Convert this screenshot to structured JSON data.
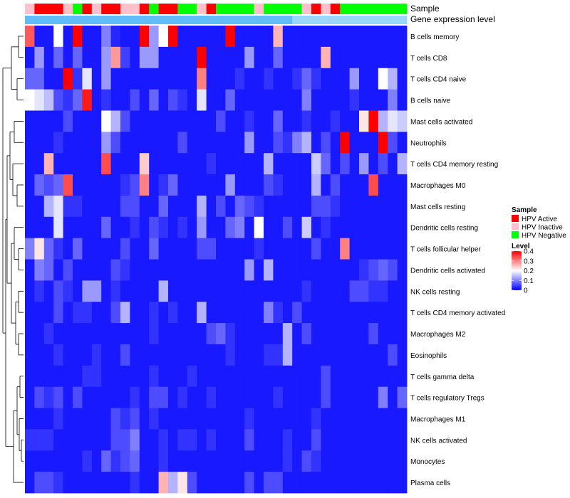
{
  "chart_data": {
    "type": "heatmap",
    "annotation_labels": {
      "sample": "Sample",
      "gene_expression": "Gene expression level"
    },
    "rows": [
      "B cells memory",
      "T cells CD8",
      "T cells CD4 naive",
      "B cells naive",
      "Mast cells activated",
      "Neutrophils",
      "T cells CD4 memory resting",
      "Macrophages M0",
      "Mast cells resting",
      "Dendritic cells resting",
      "T cells follicular helper",
      "Dendritic cells activated",
      "NK cells resting",
      "T cells CD4 memory activated",
      "Macrophages M2",
      "Eosinophils",
      "T cells gamma delta",
      "T cells regulatory  Tregs",
      "Macrophages M1",
      "NK cells activated",
      "Monocytes",
      "Plasma cells"
    ],
    "samples": [
      "HPV Inactive",
      "HPV Active",
      "HPV Active",
      "HPV Active",
      "HPV Inactive",
      "HPV Negative",
      "HPV Active",
      "HPV Inactive",
      "HPV Active",
      "HPV Active",
      "HPV Inactive",
      "HPV Inactive",
      "HPV Active",
      "HPV Negative",
      "HPV Active",
      "HPV Active",
      "HPV Negative",
      "HPV Negative",
      "HPV Inactive",
      "HPV Active",
      "HPV Negative",
      "HPV Negative",
      "HPV Negative",
      "HPV Negative",
      "HPV Inactive",
      "HPV Negative",
      "HPV Negative",
      "HPV Negative",
      "HPV Negative",
      "HPV Inactive",
      "HPV Active",
      "HPV Inactive",
      "HPV Active",
      "HPV Negative",
      "HPV Negative",
      "HPV Negative",
      "HPV Negative",
      "HPV Negative",
      "HPV Negative",
      "HPV Negative"
    ],
    "gene_expression": [
      0.88,
      0.88,
      0.88,
      0.88,
      0.88,
      0.88,
      0.88,
      0.88,
      0.88,
      0.88,
      0.88,
      0.88,
      0.88,
      0.88,
      0.88,
      0.88,
      0.88,
      0.88,
      0.88,
      0.88,
      0.88,
      0.88,
      0.88,
      0.88,
      0.88,
      0.88,
      0.88,
      0.88,
      0.55,
      0.55,
      0.55,
      0.55,
      0.55,
      0.55,
      0.55,
      0.55,
      0.55,
      0.55,
      0.55,
      0.55
    ],
    "values": [
      [
        0.33,
        0.02,
        0.02,
        0.2,
        0.02,
        0.4,
        0.02,
        0.02,
        0.1,
        0.03,
        0.02,
        0.02,
        0.4,
        0.12,
        0.2,
        0.4,
        0.02,
        0.02,
        0.02,
        0.02,
        0.02,
        0.4,
        0.02,
        0.02,
        0.02,
        0.02,
        0.26,
        0.02,
        0.02,
        0.02,
        0.02,
        0.02,
        0.02,
        0.02,
        0.02,
        0.02,
        0.02,
        0.02,
        0.02,
        0.02
      ],
      [
        0.02,
        0.12,
        0.02,
        0.08,
        0.02,
        0.08,
        0.02,
        0.02,
        0.12,
        0.28,
        0.05,
        0.02,
        0.12,
        0.12,
        0.02,
        0.02,
        0.02,
        0.02,
        0.4,
        0.02,
        0.02,
        0.02,
        0.02,
        0.12,
        0.02,
        0.02,
        0.08,
        0.02,
        0.02,
        0.02,
        0.02,
        0.26,
        0.02,
        0.02,
        0.02,
        0.02,
        0.02,
        0.02,
        0.02,
        0.02
      ],
      [
        0.08,
        0.08,
        0.02,
        0.02,
        0.4,
        0.04,
        0.18,
        0.02,
        0.12,
        0.02,
        0.02,
        0.02,
        0.02,
        0.02,
        0.02,
        0.02,
        0.02,
        0.02,
        0.3,
        0.02,
        0.02,
        0.02,
        0.04,
        0.02,
        0.02,
        0.04,
        0.02,
        0.02,
        0.04,
        0.08,
        0.04,
        0.02,
        0.02,
        0.02,
        0.12,
        0.02,
        0.02,
        0.2,
        0.14,
        0.02
      ],
      [
        0.2,
        0.18,
        0.15,
        0.06,
        0.04,
        0.08,
        0.38,
        0.02,
        0.04,
        0.02,
        0.02,
        0.06,
        0.02,
        0.08,
        0.02,
        0.06,
        0.04,
        0.02,
        0.18,
        0.02,
        0.02,
        0.08,
        0.02,
        0.02,
        0.02,
        0.02,
        0.02,
        0.02,
        0.02,
        0.1,
        0.02,
        0.02,
        0.02,
        0.02,
        0.04,
        0.02,
        0.02,
        0.02,
        0.1,
        0.02
      ],
      [
        0.02,
        0.02,
        0.02,
        0.02,
        0.06,
        0.02,
        0.02,
        0.02,
        0.2,
        0.14,
        0.06,
        0.02,
        0.02,
        0.02,
        0.02,
        0.02,
        0.02,
        0.02,
        0.02,
        0.02,
        0.06,
        0.02,
        0.02,
        0.04,
        0.02,
        0.02,
        0.08,
        0.02,
        0.02,
        0.04,
        0.02,
        0.02,
        0.04,
        0.02,
        0.02,
        0.22,
        0.4,
        0.14,
        0.18,
        0.16
      ],
      [
        0.02,
        0.02,
        0.02,
        0.04,
        0.02,
        0.02,
        0.02,
        0.02,
        0.12,
        0.06,
        0.02,
        0.02,
        0.02,
        0.02,
        0.02,
        0.02,
        0.06,
        0.02,
        0.02,
        0.02,
        0.02,
        0.02,
        0.02,
        0.12,
        0.02,
        0.02,
        0.06,
        0.04,
        0.1,
        0.14,
        0.02,
        0.06,
        0.02,
        0.4,
        0.02,
        0.02,
        0.02,
        0.4,
        0.06,
        0.02
      ],
      [
        0.02,
        0.02,
        0.26,
        0.02,
        0.02,
        0.02,
        0.02,
        0.02,
        0.34,
        0.02,
        0.02,
        0.02,
        0.24,
        0.02,
        0.02,
        0.02,
        0.02,
        0.02,
        0.02,
        0.04,
        0.02,
        0.02,
        0.02,
        0.02,
        0.02,
        0.14,
        0.02,
        0.02,
        0.02,
        0.02,
        0.16,
        0.08,
        0.02,
        0.06,
        0.02,
        0.12,
        0.02,
        0.06,
        0.02,
        0.14
      ],
      [
        0.02,
        0.08,
        0.06,
        0.08,
        0.34,
        0.02,
        0.02,
        0.02,
        0.02,
        0.02,
        0.04,
        0.06,
        0.3,
        0.02,
        0.04,
        0.08,
        0.02,
        0.02,
        0.02,
        0.02,
        0.02,
        0.12,
        0.02,
        0.02,
        0.02,
        0.06,
        0.04,
        0.02,
        0.02,
        0.02,
        0.14,
        0.02,
        0.06,
        0.02,
        0.02,
        0.02,
        0.34,
        0.02,
        0.02,
        0.02
      ],
      [
        0.02,
        0.02,
        0.14,
        0.18,
        0.04,
        0.04,
        0.02,
        0.02,
        0.02,
        0.02,
        0.06,
        0.06,
        0.02,
        0.02,
        0.08,
        0.02,
        0.02,
        0.02,
        0.14,
        0.02,
        0.06,
        0.02,
        0.08,
        0.06,
        0.04,
        0.02,
        0.02,
        0.02,
        0.02,
        0.02,
        0.06,
        0.06,
        0.04,
        0.02,
        0.02,
        0.02,
        0.02,
        0.02,
        0.02,
        0.02
      ],
      [
        0.02,
        0.02,
        0.02,
        0.18,
        0.02,
        0.02,
        0.02,
        0.02,
        0.08,
        0.02,
        0.02,
        0.04,
        0.02,
        0.06,
        0.04,
        0.02,
        0.04,
        0.02,
        0.12,
        0.02,
        0.02,
        0.08,
        0.1,
        0.02,
        0.2,
        0.02,
        0.02,
        0.06,
        0.02,
        0.16,
        0.02,
        0.04,
        0.02,
        0.02,
        0.02,
        0.02,
        0.02,
        0.02,
        0.02,
        0.02
      ],
      [
        0.1,
        0.22,
        0.08,
        0.04,
        0.02,
        0.08,
        0.02,
        0.02,
        0.02,
        0.02,
        0.06,
        0.02,
        0.02,
        0.08,
        0.02,
        0.02,
        0.02,
        0.02,
        0.06,
        0.06,
        0.02,
        0.02,
        0.02,
        0.02,
        0.04,
        0.02,
        0.02,
        0.02,
        0.02,
        0.02,
        0.06,
        0.02,
        0.02,
        0.3,
        0.02,
        0.02,
        0.02,
        0.02,
        0.02,
        0.02
      ],
      [
        0.02,
        0.1,
        0.08,
        0.02,
        0.06,
        0.02,
        0.02,
        0.02,
        0.02,
        0.06,
        0.04,
        0.02,
        0.02,
        0.02,
        0.02,
        0.02,
        0.02,
        0.02,
        0.02,
        0.02,
        0.02,
        0.02,
        0.02,
        0.12,
        0.02,
        0.14,
        0.02,
        0.02,
        0.02,
        0.02,
        0.02,
        0.02,
        0.02,
        0.02,
        0.02,
        0.04,
        0.06,
        0.08,
        0.06,
        0.02
      ],
      [
        0.02,
        0.04,
        0.02,
        0.06,
        0.04,
        0.02,
        0.12,
        0.12,
        0.02,
        0.04,
        0.02,
        0.02,
        0.02,
        0.02,
        0.14,
        0.02,
        0.02,
        0.02,
        0.02,
        0.02,
        0.02,
        0.02,
        0.02,
        0.02,
        0.02,
        0.02,
        0.02,
        0.02,
        0.02,
        0.04,
        0.02,
        0.02,
        0.02,
        0.02,
        0.06,
        0.06,
        0.04,
        0.04,
        0.02,
        0.02
      ],
      [
        0.02,
        0.02,
        0.02,
        0.06,
        0.02,
        0.04,
        0.04,
        0.02,
        0.02,
        0.06,
        0.14,
        0.02,
        0.02,
        0.04,
        0.02,
        0.04,
        0.02,
        0.02,
        0.14,
        0.02,
        0.02,
        0.02,
        0.02,
        0.02,
        0.02,
        0.1,
        0.04,
        0.02,
        0.06,
        0.02,
        0.02,
        0.02,
        0.02,
        0.02,
        0.02,
        0.02,
        0.02,
        0.02,
        0.02,
        0.02
      ],
      [
        0.02,
        0.02,
        0.04,
        0.02,
        0.02,
        0.02,
        0.02,
        0.02,
        0.02,
        0.02,
        0.02,
        0.02,
        0.02,
        0.04,
        0.02,
        0.02,
        0.02,
        0.02,
        0.02,
        0.06,
        0.08,
        0.04,
        0.02,
        0.02,
        0.02,
        0.02,
        0.02,
        0.14,
        0.02,
        0.06,
        0.02,
        0.02,
        0.02,
        0.02,
        0.02,
        0.02,
        0.06,
        0.02,
        0.02,
        0.02
      ],
      [
        0.02,
        0.02,
        0.02,
        0.04,
        0.02,
        0.02,
        0.02,
        0.04,
        0.02,
        0.02,
        0.06,
        0.02,
        0.02,
        0.02,
        0.02,
        0.02,
        0.02,
        0.02,
        0.02,
        0.02,
        0.02,
        0.04,
        0.02,
        0.02,
        0.02,
        0.04,
        0.04,
        0.14,
        0.02,
        0.02,
        0.02,
        0.02,
        0.02,
        0.02,
        0.02,
        0.02,
        0.02,
        0.02,
        0.06,
        0.02
      ],
      [
        0.02,
        0.02,
        0.02,
        0.02,
        0.02,
        0.02,
        0.04,
        0.04,
        0.02,
        0.02,
        0.02,
        0.02,
        0.02,
        0.04,
        0.02,
        0.02,
        0.02,
        0.04,
        0.02,
        0.02,
        0.02,
        0.02,
        0.02,
        0.02,
        0.02,
        0.02,
        0.02,
        0.02,
        0.02,
        0.02,
        0.02,
        0.06,
        0.02,
        0.02,
        0.02,
        0.02,
        0.02,
        0.02,
        0.02,
        0.02
      ],
      [
        0.02,
        0.06,
        0.04,
        0.06,
        0.02,
        0.06,
        0.02,
        0.02,
        0.02,
        0.02,
        0.02,
        0.04,
        0.02,
        0.06,
        0.06,
        0.02,
        0.04,
        0.02,
        0.02,
        0.04,
        0.02,
        0.02,
        0.02,
        0.02,
        0.02,
        0.02,
        0.04,
        0.02,
        0.02,
        0.02,
        0.02,
        0.06,
        0.02,
        0.02,
        0.02,
        0.02,
        0.02,
        0.1,
        0.02,
        0.08
      ],
      [
        0.02,
        0.02,
        0.02,
        0.04,
        0.02,
        0.02,
        0.02,
        0.02,
        0.02,
        0.06,
        0.04,
        0.06,
        0.02,
        0.04,
        0.02,
        0.02,
        0.02,
        0.02,
        0.02,
        0.02,
        0.02,
        0.02,
        0.02,
        0.04,
        0.02,
        0.02,
        0.02,
        0.02,
        0.02,
        0.02,
        0.04,
        0.02,
        0.02,
        0.02,
        0.02,
        0.02,
        0.02,
        0.02,
        0.02,
        0.02
      ],
      [
        0.04,
        0.04,
        0.04,
        0.02,
        0.02,
        0.02,
        0.02,
        0.02,
        0.02,
        0.06,
        0.06,
        0.1,
        0.02,
        0.02,
        0.04,
        0.02,
        0.04,
        0.04,
        0.02,
        0.04,
        0.02,
        0.02,
        0.02,
        0.06,
        0.02,
        0.02,
        0.02,
        0.04,
        0.02,
        0.02,
        0.06,
        0.02,
        0.02,
        0.02,
        0.02,
        0.02,
        0.02,
        0.02,
        0.02,
        0.02
      ],
      [
        0.02,
        0.02,
        0.02,
        0.02,
        0.02,
        0.02,
        0.04,
        0.02,
        0.08,
        0.04,
        0.06,
        0.08,
        0.02,
        0.02,
        0.04,
        0.02,
        0.02,
        0.02,
        0.02,
        0.02,
        0.02,
        0.02,
        0.02,
        0.02,
        0.02,
        0.02,
        0.02,
        0.04,
        0.02,
        0.06,
        0.04,
        0.02,
        0.02,
        0.02,
        0.02,
        0.02,
        0.02,
        0.02,
        0.02,
        0.02
      ],
      [
        0.02,
        0.06,
        0.06,
        0.04,
        0.02,
        0.02,
        0.02,
        0.02,
        0.02,
        0.02,
        0.02,
        0.04,
        0.02,
        0.02,
        0.26,
        0.14,
        0.22,
        0.06,
        0.02,
        0.02,
        0.02,
        0.02,
        0.02,
        0.06,
        0.02,
        0.06,
        0.06,
        0.02,
        0.02,
        0.02,
        0.02,
        0.02,
        0.02,
        0.02,
        0.02,
        0.02,
        0.02,
        0.02,
        0.02,
        0.02
      ]
    ],
    "legend": {
      "sample_title": "Sample",
      "sample_entries": [
        {
          "label": "HPV Active",
          "color": "#ff0000"
        },
        {
          "label": "HPV Inactive",
          "color": "#ffc0cb"
        },
        {
          "label": "HPV Negative",
          "color": "#00ff00"
        }
      ],
      "level_title": "Level",
      "level_ticks": [
        0.4,
        0.3,
        0.2,
        0.1,
        0
      ],
      "level_tick_labels": [
        "0.4",
        "0.3",
        "0.2",
        "0.1",
        "0"
      ],
      "range": [
        0,
        0.4
      ]
    },
    "color_scale": {
      "low": "#0000ff",
      "mid": "#ffffff",
      "high": "#ff0000",
      "mid_value": 0.2
    },
    "gene_expression_scale": {
      "low": "#ffffff",
      "high": "#4ab4f7"
    }
  }
}
